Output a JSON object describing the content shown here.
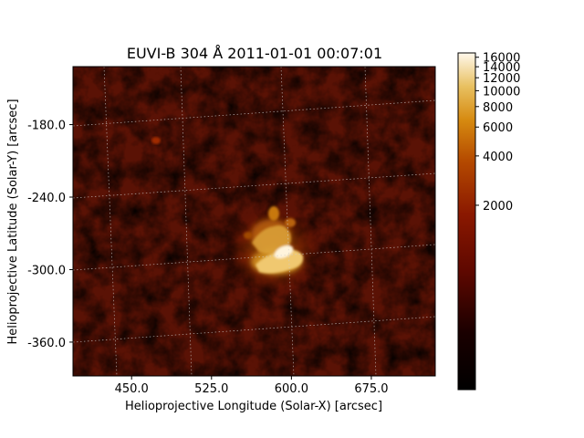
{
  "chart_data": {
    "type": "heatmap",
    "title": "EUVI-B 304 Å 2011-01-01 00:07:01",
    "xlabel": "Helioprojective Longitude (Solar-X) [arcsec]",
    "ylabel": "Helioprojective Latitude (Solar-Y) [arcsec]",
    "x_ticks": [
      "450.0",
      "525.0",
      "600.0",
      "675.0"
    ],
    "y_ticks": [
      "-180.0",
      "-240.0",
      "-300.0",
      "-360.0"
    ],
    "xlim": [
      395,
      735
    ],
    "ylim": [
      -388,
      -132
    ],
    "grid": true,
    "colormap": "stereo euvi 304 (black-red-orange-yellow-white)",
    "colorbar": {
      "scale": "log",
      "vmin": 150,
      "vmax": 17000,
      "ticks": [
        2000,
        4000,
        6000,
        8000,
        10000,
        12000,
        14000,
        16000
      ],
      "tick_labels": [
        "2000",
        "4000",
        "6000",
        "8000",
        "10000",
        "12000",
        "14000",
        "16000"
      ]
    },
    "features": [
      {
        "label": "bright active region",
        "x": 580,
        "y": -270,
        "peak": 16000
      }
    ]
  }
}
